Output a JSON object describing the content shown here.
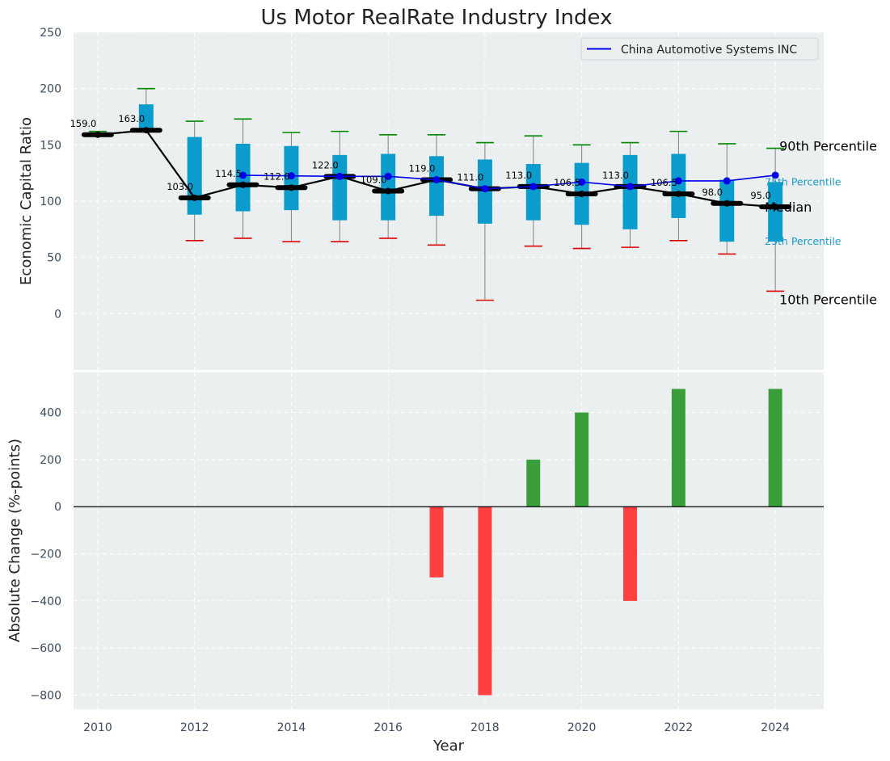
{
  "chart_data": {
    "title": "Us Motor RealRate Industry Index",
    "xlabel": "Year",
    "xlim": [
      2009.5,
      2025
    ],
    "x_ticks": [
      2010,
      2012,
      2014,
      2016,
      2018,
      2020,
      2022,
      2024
    ],
    "top": {
      "type": "box",
      "ylabel": "Economic Capital Ratio",
      "ylim": [
        -50,
        250
      ],
      "y_ticks": [
        0,
        50,
        100,
        150,
        200,
        250
      ],
      "years": [
        2010,
        2011,
        2012,
        2013,
        2014,
        2015,
        2016,
        2017,
        2018,
        2019,
        2020,
        2021,
        2022,
        2023,
        2024
      ],
      "p10": [
        159,
        163,
        65,
        67,
        64,
        64,
        67,
        61,
        12,
        60,
        58,
        59,
        65,
        53,
        20
      ],
      "p25": [
        158,
        163,
        88,
        91,
        92,
        83,
        83,
        87,
        80,
        83,
        79,
        75,
        85,
        64,
        64
      ],
      "median": [
        159,
        163,
        103,
        114.5,
        112,
        122,
        109,
        119,
        111,
        113,
        106.5,
        113,
        106.5,
        98,
        95
      ],
      "median_labels": [
        "159.0",
        "163.0",
        "103.0",
        "114.5",
        "112.0",
        "122.0",
        "109.0",
        "119.0",
        "111.0",
        "113.0",
        "106.5",
        "113.0",
        "106.5",
        "98.0",
        "95.0"
      ],
      "p75": [
        161,
        186,
        157,
        151,
        149,
        141,
        142,
        140,
        137,
        133,
        134,
        141,
        142,
        119,
        117
      ],
      "p90": [
        162,
        200,
        171,
        173,
        161,
        162,
        159,
        159,
        152,
        158,
        150,
        152,
        162,
        151,
        147
      ],
      "company": {
        "name": "China Automotive Systems INC",
        "years": [
          2013,
          2014,
          2015,
          2016,
          2017,
          2018,
          2019,
          2020,
          2021,
          2022,
          2023,
          2024
        ],
        "values": [
          123,
          122.5,
          122,
          122,
          119,
          111,
          113,
          117,
          113,
          118,
          118,
          123
        ]
      },
      "annotations": {
        "p90": "90th Percentile",
        "p75": "75th Percentile",
        "median": "Median",
        "p25": "25th Percentile",
        "p10": "10th Percentile"
      }
    },
    "bottom": {
      "type": "bar",
      "ylabel": "Absolute Change (%-points)",
      "ylim": [
        -860,
        570
      ],
      "y_ticks": [
        400,
        200,
        0,
        -200,
        -400,
        -600,
        -800
      ],
      "y_tick_labels": [
        "400",
        "200",
        "0",
        "−200",
        "−400",
        "−600",
        "−800"
      ],
      "years": [
        2017,
        2018,
        2019,
        2020,
        2021,
        2022,
        2024
      ],
      "values": [
        -300,
        -800,
        200,
        400,
        -400,
        500,
        500
      ]
    },
    "colors": {
      "plot_bg": "#ebeff0",
      "box": "#0a9ccc",
      "median": "#000000",
      "company": "#0000ee",
      "p90_cap": "#008800",
      "p10_cap": "#dd0000",
      "whisker": "#808080",
      "bar_pos": "#3a9e3a",
      "bar_neg": "#ff4040"
    }
  }
}
